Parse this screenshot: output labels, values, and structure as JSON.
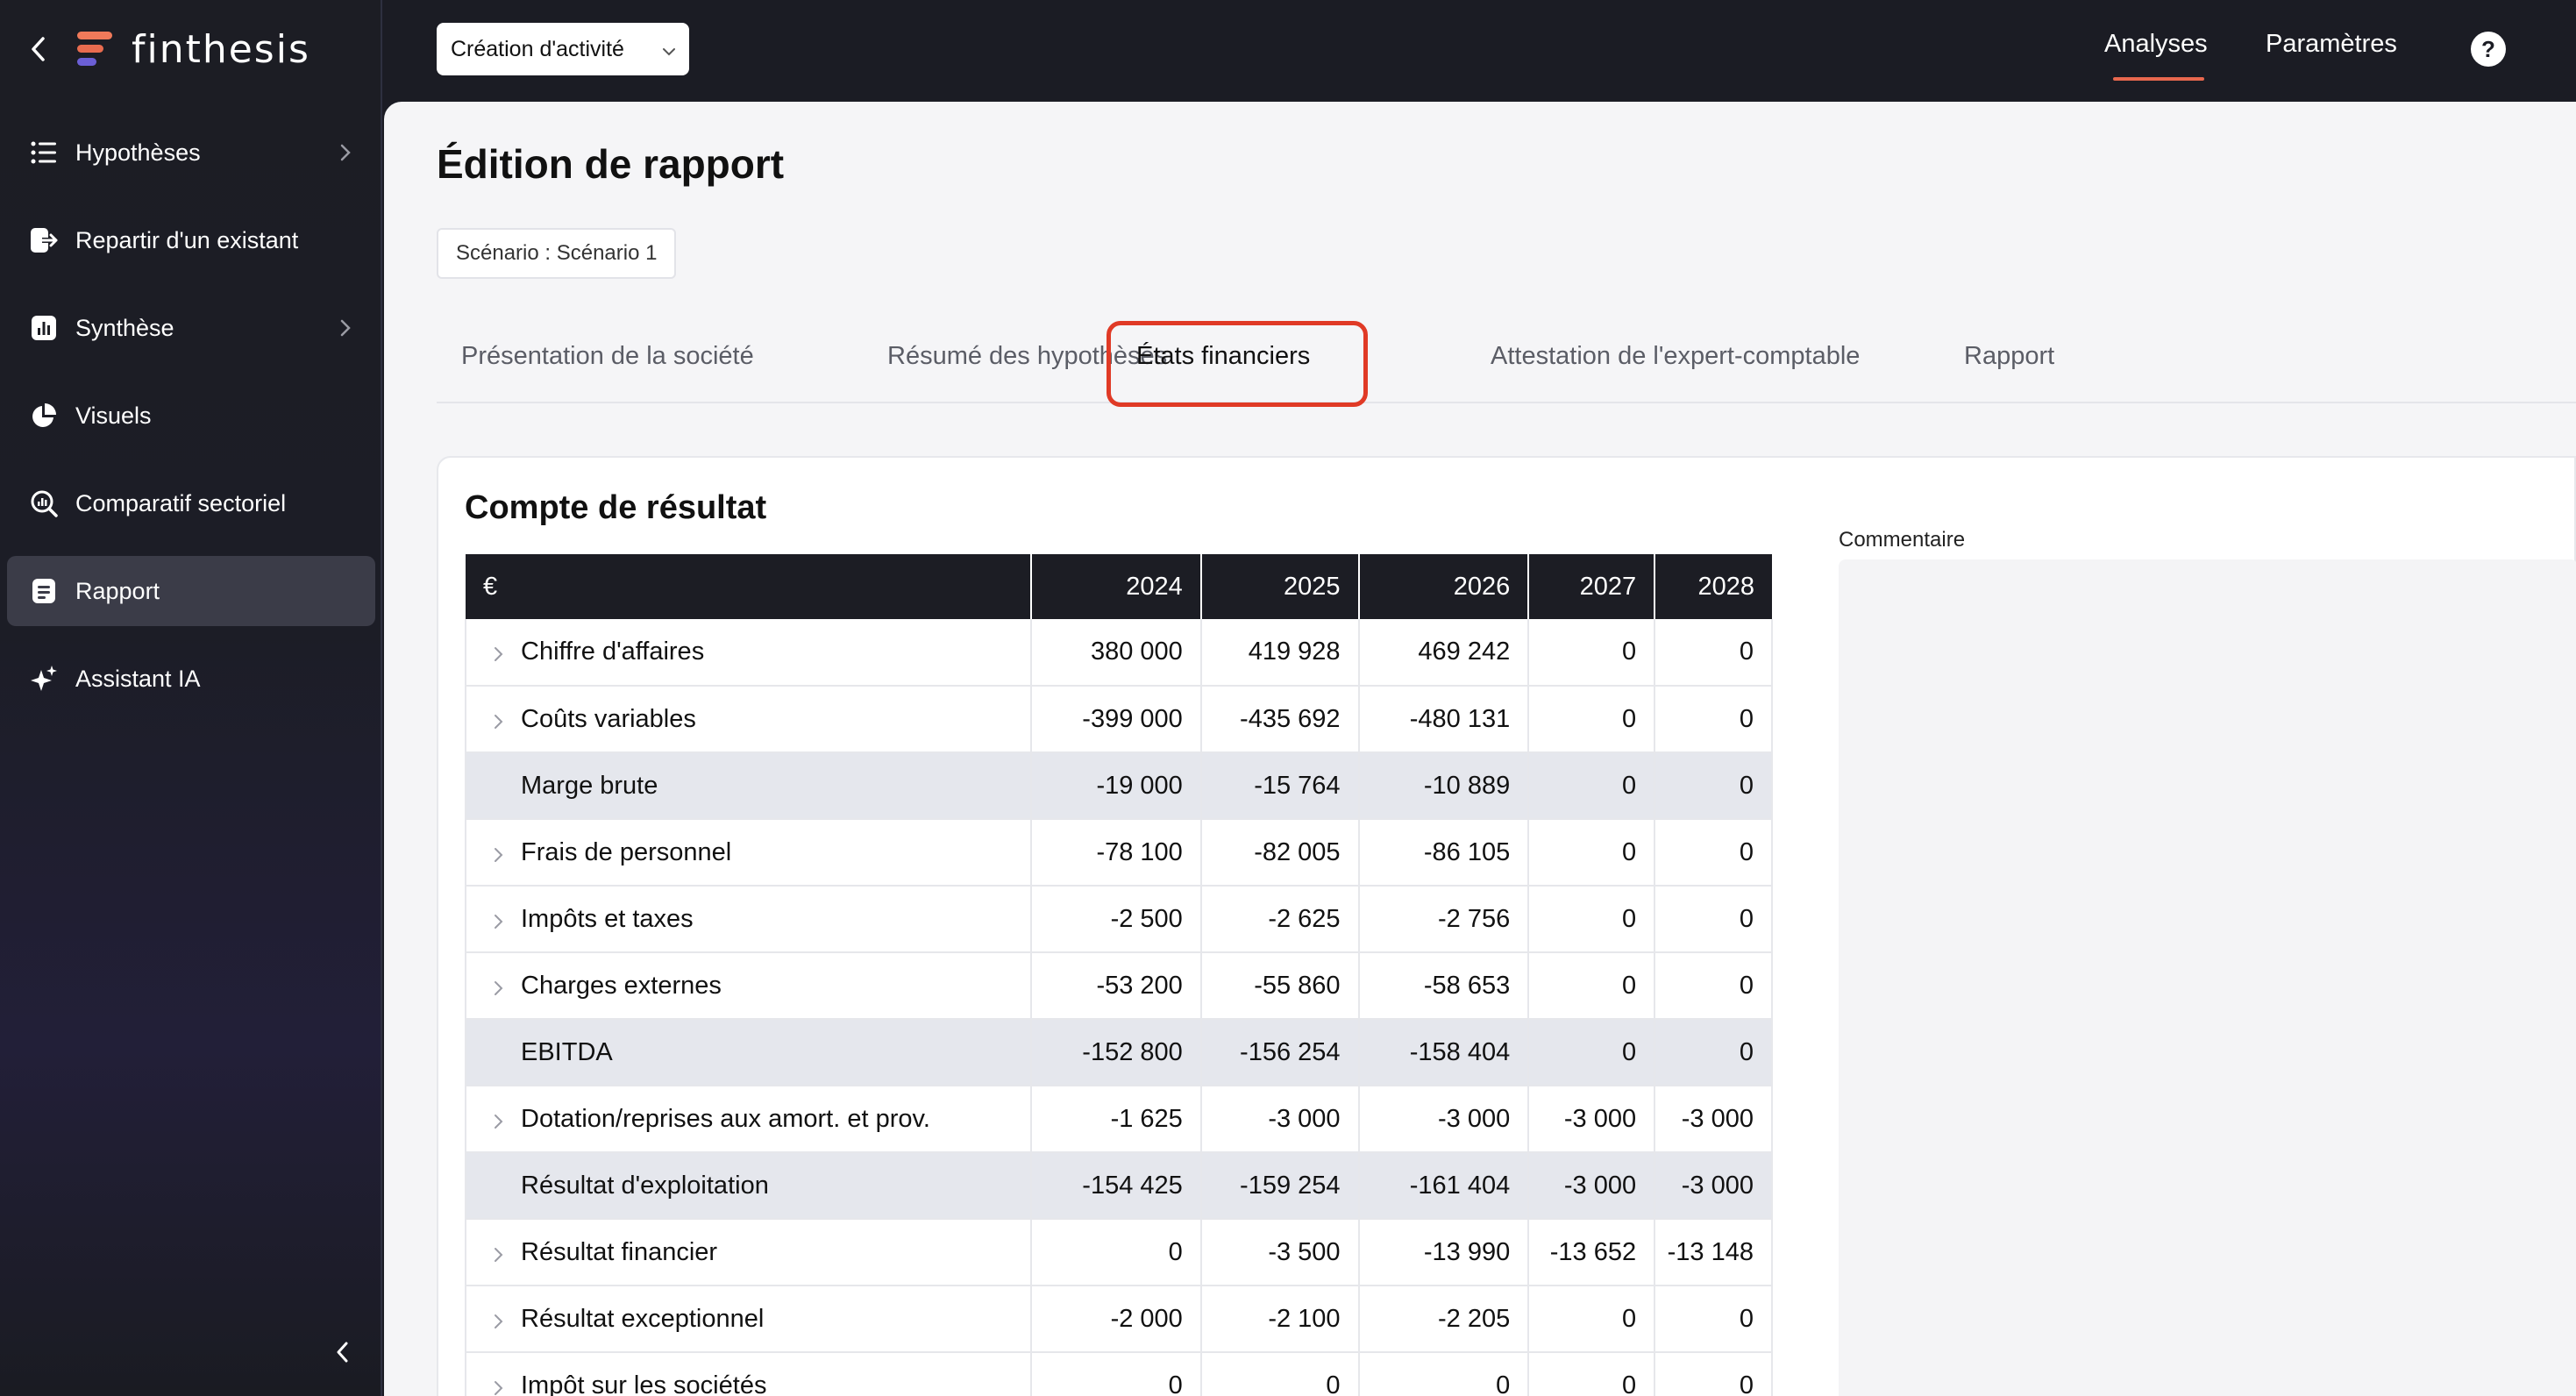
{
  "sidebar": {
    "logo": "finthesis",
    "items": [
      {
        "label": "Hypothèses",
        "icon": "list-icon",
        "has_chevron": true
      },
      {
        "label": "Repartir d'un existant",
        "icon": "import-icon",
        "has_chevron": false
      },
      {
        "label": "Synthèse",
        "icon": "chart-bars-icon",
        "has_chevron": true
      },
      {
        "label": "Visuels",
        "icon": "pie-chart-icon",
        "has_chevron": false
      },
      {
        "label": "Comparatif sectoriel",
        "icon": "analytics-search-icon",
        "has_chevron": false
      },
      {
        "label": "Rapport",
        "icon": "document-icon",
        "has_chevron": false,
        "active": true
      },
      {
        "label": "Assistant IA",
        "icon": "sparkle-icon",
        "has_chevron": false
      }
    ]
  },
  "topbar": {
    "project": "Création d'activité",
    "tabs": [
      "Analyses",
      "Paramètres"
    ],
    "help": "?"
  },
  "main": {
    "title": "Édition de rapport",
    "scenario": "Scénario : Scénario 1",
    "tabs": [
      "Présentation de la société",
      "Résumé des hypothèses",
      "États financiers",
      "Attestation de l'expert-comptable",
      "Rapport"
    ],
    "active_tab": "États financiers"
  },
  "card": {
    "title": "Compte de résultat",
    "comment_label": "Commentaire",
    "table": {
      "currency": "€",
      "years": [
        "2024",
        "2025",
        "2026",
        "2027",
        "2028"
      ],
      "rows": [
        {
          "label": "Chiffre d'affaires",
          "values": [
            "380 000",
            "419 928",
            "469 242",
            "0",
            "0"
          ],
          "expandable": true,
          "total": false
        },
        {
          "label": "Coûts variables",
          "values": [
            "-399 000",
            "-435 692",
            "-480 131",
            "0",
            "0"
          ],
          "expandable": true,
          "total": false
        },
        {
          "label": "Marge brute",
          "values": [
            "-19 000",
            "-15 764",
            "-10 889",
            "0",
            "0"
          ],
          "expandable": false,
          "total": true
        },
        {
          "label": "Frais de personnel",
          "values": [
            "-78 100",
            "-82 005",
            "-86 105",
            "0",
            "0"
          ],
          "expandable": true,
          "total": false
        },
        {
          "label": "Impôts et taxes",
          "values": [
            "-2 500",
            "-2 625",
            "-2 756",
            "0",
            "0"
          ],
          "expandable": true,
          "total": false
        },
        {
          "label": "Charges externes",
          "values": [
            "-53 200",
            "-55 860",
            "-58 653",
            "0",
            "0"
          ],
          "expandable": true,
          "total": false
        },
        {
          "label": "EBITDA",
          "values": [
            "-152 800",
            "-156 254",
            "-158 404",
            "0",
            "0"
          ],
          "expandable": false,
          "total": true
        },
        {
          "label": "Dotation/reprises aux amort. et prov.",
          "values": [
            "-1 625",
            "-3 000",
            "-3 000",
            "-3 000",
            "-3 000"
          ],
          "expandable": true,
          "total": false
        },
        {
          "label": "Résultat d'exploitation",
          "values": [
            "-154 425",
            "-159 254",
            "-161 404",
            "-3 000",
            "-3 000"
          ],
          "expandable": false,
          "total": true
        },
        {
          "label": "Résultat financier",
          "values": [
            "0",
            "-3 500",
            "-13 990",
            "-13 652",
            "-13 148"
          ],
          "expandable": true,
          "total": false
        },
        {
          "label": "Résultat exceptionnel",
          "values": [
            "-2 000",
            "-2 100",
            "-2 205",
            "0",
            "0"
          ],
          "expandable": true,
          "total": false
        },
        {
          "label": "Impôt sur les sociétés",
          "values": [
            "0",
            "0",
            "0",
            "0",
            "0"
          ],
          "expandable": true,
          "total": false
        }
      ]
    }
  },
  "colors": {
    "accent": "#e8684e",
    "highlight": "#e03a26",
    "sidebar_bg": "#1c1d24",
    "total_row": "#e5e7ed"
  }
}
